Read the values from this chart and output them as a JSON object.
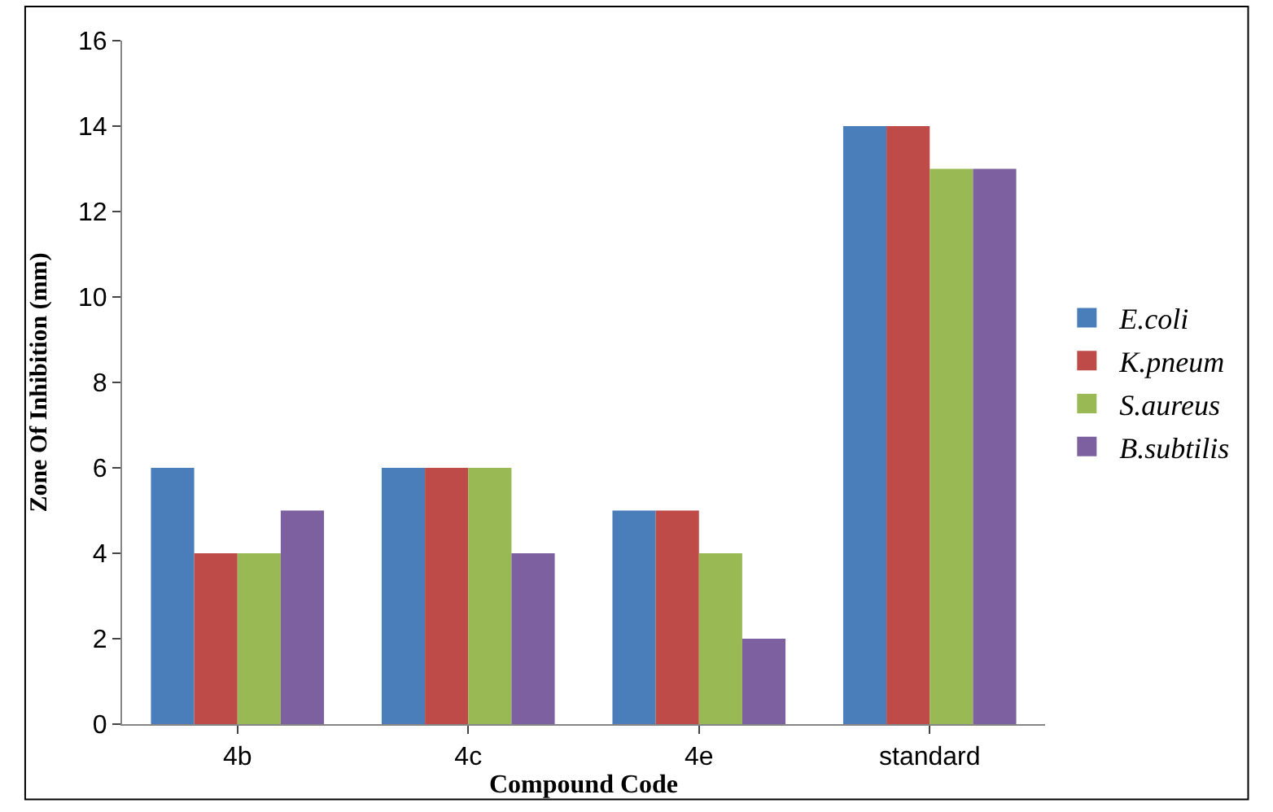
{
  "chart_data": {
    "type": "bar",
    "xlabel": "Compound Code",
    "ylabel": "Zone Of Inhibition (mm)",
    "categories": [
      "4b",
      "4c",
      "4e",
      "standard"
    ],
    "series": [
      {
        "name": "E.coli",
        "color": "#4a7ebb",
        "values": [
          6,
          6,
          5,
          14
        ]
      },
      {
        "name": "K.pneum",
        "color": "#be4b48",
        "values": [
          4,
          6,
          5,
          14
        ]
      },
      {
        "name": "S.aureus",
        "color": "#98b954",
        "values": [
          4,
          6,
          4,
          13
        ]
      },
      {
        "name": "B.subtilis",
        "color": "#7d60a0",
        "values": [
          5,
          4,
          2,
          13
        ]
      }
    ],
    "ylim": [
      0,
      16
    ],
    "yticks": [
      0,
      2,
      4,
      6,
      8,
      10,
      12,
      14,
      16
    ],
    "legend": "right"
  }
}
